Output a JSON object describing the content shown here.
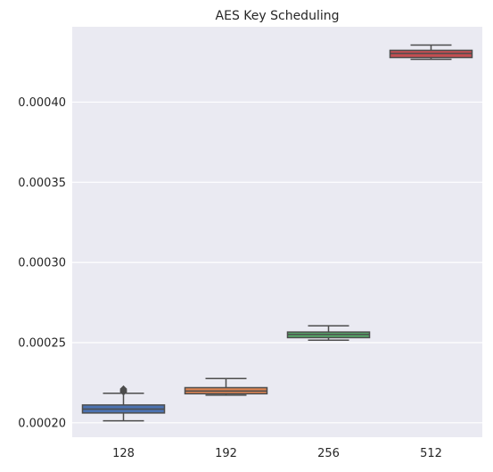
{
  "chart_data": {
    "type": "box",
    "title": "AES Key Scheduling",
    "xlabel": "",
    "ylabel": "",
    "categories": [
      "128",
      "192",
      "256",
      "512"
    ],
    "ylim": [
      0.000191,
      0.000447
    ],
    "yticks": [
      0.0002,
      0.00025,
      0.0003,
      0.00035,
      0.0004
    ],
    "ytick_labels": [
      "0.00020",
      "0.00025",
      "0.00030",
      "0.00035",
      "0.00040"
    ],
    "grid": true,
    "boxes": [
      {
        "category": "128",
        "whisker_low": 0.0002012,
        "q1": 0.0002061,
        "median": 0.0002085,
        "q3": 0.0002111,
        "whisker_high": 0.0002184,
        "outliers": [
          0.0002192,
          0.0002196,
          0.0002199,
          0.0002203,
          0.0002207,
          0.0002211
        ],
        "color": "#4c72b0"
      },
      {
        "category": "192",
        "whisker_low": 0.0002172,
        "q1": 0.0002181,
        "median": 0.0002198,
        "q3": 0.0002219,
        "whisker_high": 0.0002276,
        "outliers": [],
        "color": "#dd8452"
      },
      {
        "category": "256",
        "whisker_low": 0.0002515,
        "q1": 0.0002531,
        "median": 0.0002551,
        "q3": 0.0002566,
        "whisker_high": 0.0002605,
        "outliers": [],
        "color": "#55a868"
      },
      {
        "category": "512",
        "whisker_low": 0.0004267,
        "q1": 0.0004278,
        "median": 0.0004304,
        "q3": 0.0004323,
        "whisker_high": 0.0004356,
        "outliers": [],
        "color": "#c44e52"
      }
    ],
    "colors": {
      "background": "#eaeaf2",
      "grid": "#ffffff",
      "line": "#4d4d4d",
      "text": "#262626"
    }
  }
}
